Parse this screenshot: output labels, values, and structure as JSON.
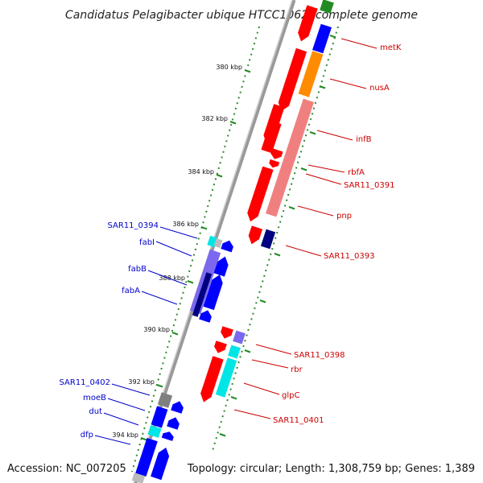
{
  "title": "Candidatus Pelagibacter ubique HTCC1062, complete genome",
  "accession": "Accession: NC_007205",
  "topology": "Topology: circular; Length: 1,308,759 bp; Genes: 1,389",
  "colors": {
    "forward": "#ff0000",
    "reverse": "#0000ff",
    "forward_shade": "#f08080",
    "reverse_shade": "#7b68ee",
    "cyan": "#00e5e5",
    "orange": "#ff8c00",
    "navy": "#000080",
    "gray": "#808080",
    "green": "#228b22"
  },
  "kbp_labels": [
    "380 kbp",
    "382 kbp",
    "384 kbp",
    "386 kbp",
    "388 kbp",
    "390 kbp",
    "392 kbp",
    "394 kbp"
  ],
  "forward_labels": [
    "metK",
    "nusA",
    "infB",
    "rbfA",
    "SAR11_0391",
    "pnp",
    "SAR11_0393",
    "SAR11_0398",
    "rbr",
    "glpC",
    "SAR11_0401"
  ],
  "reverse_labels": [
    "SAR11_0394",
    "fabI",
    "fabB",
    "fabA",
    "SAR11_0402",
    "moeB",
    "dut",
    "dfp"
  ]
}
